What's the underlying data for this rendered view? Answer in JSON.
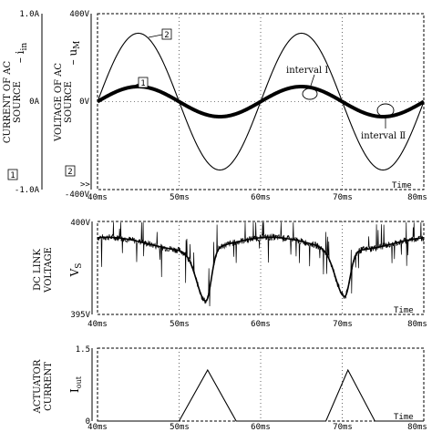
{
  "chart_data": [
    {
      "type": "line",
      "time_label": "Time",
      "x_ticks": [
        "40ms",
        "50ms",
        "60ms",
        "70ms",
        "80ms"
      ],
      "xlim": [
        40,
        80
      ],
      "left_axis": {
        "ticks": [
          "1.0A",
          "0A",
          "-1.0A"
        ],
        "ylim": [
          -1.0,
          1.0
        ],
        "label_lines": [
          "CURRENT OF AC",
          "SOURCE"
        ],
        "symbol": "– i",
        "symbol_sub": "in",
        "legend_marker": "1"
      },
      "right_axis": {
        "ticks": [
          "400V",
          "0V",
          "-400V"
        ],
        "ylim": [
          -400,
          400
        ],
        "label_lines": [
          "VOLTAGE OF AC",
          "SOURCE"
        ],
        "symbol": "– u",
        "symbol_sub": "M",
        "legend_marker": "2",
        "arrows": ">>"
      },
      "series": [
        {
          "marker": "1",
          "axis": "current",
          "amplitude": 0.18,
          "frequency_hz": 50,
          "phase_deg": 0,
          "x": [
            40,
            45,
            50,
            55,
            60,
            65,
            70,
            75,
            80
          ],
          "y": [
            0,
            0.18,
            0,
            -0.18,
            0,
            0.18,
            0,
            -0.18,
            0
          ]
        },
        {
          "marker": "2",
          "axis": "voltage",
          "amplitude": 311,
          "frequency_hz": 50,
          "phase_deg": 0,
          "x": [
            40,
            45,
            50,
            55,
            60,
            65,
            70,
            75,
            80
          ],
          "y": [
            0,
            311,
            0,
            -311,
            0,
            311,
            0,
            -311,
            0
          ]
        }
      ],
      "annotations": [
        {
          "text": "interval Ⅰ",
          "x": 66.0,
          "y_current": 0.05
        },
        {
          "text": "interval Ⅱ",
          "x": 76.2,
          "y_current": -0.06
        }
      ]
    },
    {
      "type": "line",
      "time_label": "Time",
      "x_ticks": [
        "40ms",
        "50ms",
        "60ms",
        "70ms",
        "80ms"
      ],
      "xlim": [
        40,
        80
      ],
      "y_ticks": [
        "400V",
        "395V"
      ],
      "ylim": [
        395,
        400
      ],
      "label_lines": [
        "DC LINK",
        "VOLTAGE"
      ],
      "symbol": "V",
      "symbol_sub": "S",
      "series": [
        {
          "name": "",
          "baseline": 398.8,
          "dips": [
            {
              "x": 53.3,
              "min": 396.0
            },
            {
              "x": 70.3,
              "min": 396.3
            }
          ]
        }
      ]
    },
    {
      "type": "line",
      "time_label": "Time",
      "x_ticks": [
        "40ms",
        "50ms",
        "60ms",
        "70ms",
        "80ms"
      ],
      "xlim": [
        40,
        80
      ],
      "y_ticks": [
        "1.5",
        "0"
      ],
      "ylim": [
        0,
        1.5
      ],
      "label_lines": [
        "ACTUATOR",
        "CURRENT"
      ],
      "symbol": "I",
      "symbol_sub": "out",
      "series": [
        {
          "name": "",
          "x": [
            40,
            50,
            53.5,
            57,
            68,
            70.7,
            74,
            80
          ],
          "y": [
            0,
            0,
            1.05,
            0,
            0,
            1.05,
            0,
            0
          ]
        }
      ]
    }
  ]
}
